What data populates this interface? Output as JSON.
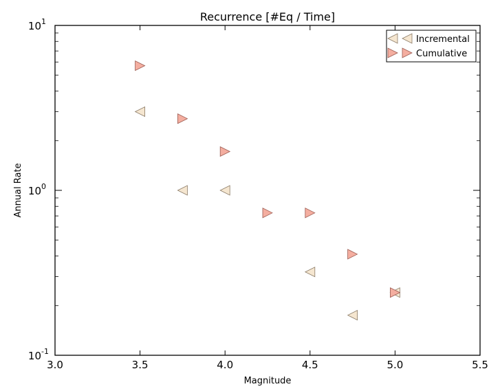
{
  "chart_data": {
    "type": "scatter",
    "title": "Recurrence [#Eq / Time]",
    "xlabel": "Magnitude",
    "ylabel": "Annual Rate",
    "xlim": [
      3.0,
      5.5
    ],
    "ylim": [
      0.1,
      10
    ],
    "yscale": "log",
    "x_ticks": [
      "3.0",
      "3.5",
      "4.0",
      "4.5",
      "5.0",
      "5.5"
    ],
    "y_ticks": [
      {
        "base": "10",
        "exp": "-1"
      },
      {
        "base": "10",
        "exp": "0"
      },
      {
        "base": "10",
        "exp": "1"
      }
    ],
    "legend_position": "top-right",
    "series": [
      {
        "name": "Incremental",
        "marker": "triangle-left",
        "color": "#f5e6d0",
        "edge": "#8a7a66",
        "x": [
          3.5,
          3.75,
          4.0,
          4.5,
          4.75,
          5.0
        ],
        "y": [
          3.0,
          1.0,
          1.0,
          0.32,
          0.175,
          0.24
        ]
      },
      {
        "name": "Cumulative",
        "marker": "triangle-right",
        "color": "#f4aea0",
        "edge": "#9a5a50",
        "x": [
          3.5,
          3.75,
          4.0,
          4.25,
          4.5,
          4.75,
          5.0
        ],
        "y": [
          5.7,
          2.72,
          1.72,
          0.73,
          0.73,
          0.41,
          0.24
        ]
      }
    ]
  }
}
